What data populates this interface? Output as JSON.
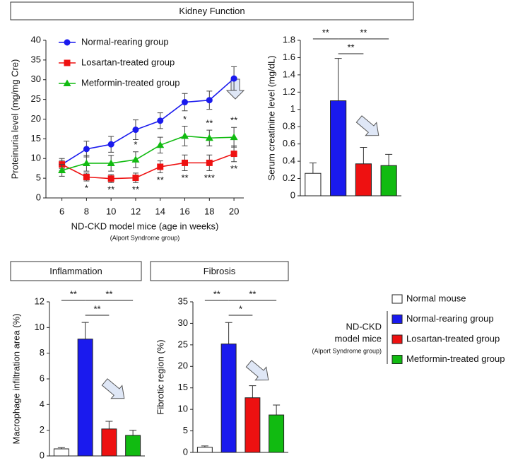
{
  "sections": [
    {
      "title": "Kidney Function"
    },
    {
      "title": "Inflammation"
    },
    {
      "title": "Fibrosis"
    }
  ],
  "legend": {
    "items": [
      {
        "name": "Normal mouse",
        "color": "#ffffff"
      },
      {
        "name": "Normal-rearing group",
        "color": "#1a1aee"
      },
      {
        "name": "Losartan-treated group",
        "color": "#ee1111"
      },
      {
        "name": "Metformin-treated group",
        "color": "#11bb11"
      }
    ],
    "group_label": [
      "ND-CKD",
      "model mice"
    ],
    "group_note": "(Alport Syndrome group)"
  },
  "chart_data": [
    {
      "type": "line",
      "x_label": "ND-CKD model mice (age in weeks)",
      "x_note": "(Alport Syndrome group)",
      "y_label": "Proteinuria level (mg/mg Cre)",
      "x": [
        6,
        8,
        10,
        12,
        14,
        16,
        18,
        20
      ],
      "xlim": [
        4.7,
        20.8
      ],
      "xticks": [
        6,
        8,
        10,
        12,
        14,
        16,
        18,
        20
      ],
      "ylim": [
        0,
        40
      ],
      "yticks": [
        0,
        5,
        10,
        15,
        20,
        25,
        30,
        35,
        40
      ],
      "legend": "upper left",
      "series": [
        {
          "name": "Normal-rearing group",
          "color": "#1a1aee",
          "marker": "circle",
          "values": [
            8.5,
            12.4,
            13.6,
            17.3,
            19.6,
            24.3,
            24.8,
            30.3
          ],
          "errors": [
            1.5,
            2,
            2,
            2.5,
            2,
            2.2,
            2.3,
            3
          ]
        },
        {
          "name": "Losartan-treated group",
          "color": "#ee1111",
          "marker": "square",
          "values": [
            8.5,
            5.3,
            4.9,
            5.1,
            7.9,
            8.9,
            8.9,
            11.2
          ],
          "errors": [
            1,
            1,
            1,
            1.2,
            1.5,
            2,
            2,
            2
          ],
          "significance": [
            null,
            "*",
            "**",
            "**",
            "**",
            "**",
            "***",
            "**"
          ]
        },
        {
          "name": "Metformin-treated group",
          "color": "#11bb11",
          "marker": "triangle",
          "values": [
            7.0,
            8.8,
            8.8,
            9.7,
            13.4,
            15.7,
            15.2,
            15.4
          ],
          "errors": [
            1.5,
            2,
            2,
            2,
            2,
            2.5,
            2,
            2.5
          ],
          "significance": [
            null,
            null,
            null,
            "*",
            null,
            "*",
            "**",
            "**"
          ]
        }
      ]
    },
    {
      "type": "bar",
      "y_label": "Serum creatinine level (mg/dL)",
      "categories": [
        null,
        null,
        null,
        null
      ],
      "values": [
        0.26,
        1.1,
        0.37,
        0.35
      ],
      "errors": [
        0.12,
        0.49,
        0.19,
        0.13
      ],
      "colors": [
        "#ffffff",
        "#1a1aee",
        "#ee1111",
        "#11bb11"
      ],
      "ylim": [
        0,
        1.8
      ],
      "yticks": [
        0,
        0.2,
        0.4,
        0.6,
        0.8,
        1,
        1.2,
        1.4,
        1.6,
        1.8
      ],
      "brackets": [
        {
          "from": 0,
          "to": 1,
          "label": "**"
        },
        {
          "from": 1,
          "to": 3,
          "label": "**"
        },
        {
          "from": 1,
          "to": 2,
          "label": "**"
        }
      ]
    },
    {
      "type": "bar",
      "y_label": "Macrophage infiltration area (%)",
      "categories": [
        null,
        null,
        null,
        null
      ],
      "values": [
        0.55,
        9.1,
        2.1,
        1.6
      ],
      "errors": [
        0.1,
        1.3,
        0.6,
        0.4
      ],
      "colors": [
        "#ffffff",
        "#1a1aee",
        "#ee1111",
        "#11bb11"
      ],
      "ylim": [
        0,
        12
      ],
      "yticks": [
        0,
        2,
        4,
        6,
        8,
        10,
        12
      ],
      "brackets": [
        {
          "from": 0,
          "to": 1,
          "label": "**"
        },
        {
          "from": 1,
          "to": 3,
          "label": "**"
        },
        {
          "from": 1,
          "to": 2,
          "label": "**"
        }
      ]
    },
    {
      "type": "bar",
      "y_label": "Fibrotic region (%)",
      "categories": [
        null,
        null,
        null,
        null
      ],
      "values": [
        1.2,
        25.2,
        12.7,
        8.7
      ],
      "errors": [
        0.3,
        5,
        2.8,
        2.3
      ],
      "colors": [
        "#ffffff",
        "#1a1aee",
        "#ee1111",
        "#11bb11"
      ],
      "ylim": [
        0,
        35
      ],
      "yticks": [
        0,
        5,
        10,
        15,
        20,
        25,
        30,
        35
      ],
      "brackets": [
        {
          "from": 0,
          "to": 1,
          "label": "**"
        },
        {
          "from": 1,
          "to": 3,
          "label": "**"
        },
        {
          "from": 1,
          "to": 2,
          "label": "*"
        }
      ]
    }
  ]
}
